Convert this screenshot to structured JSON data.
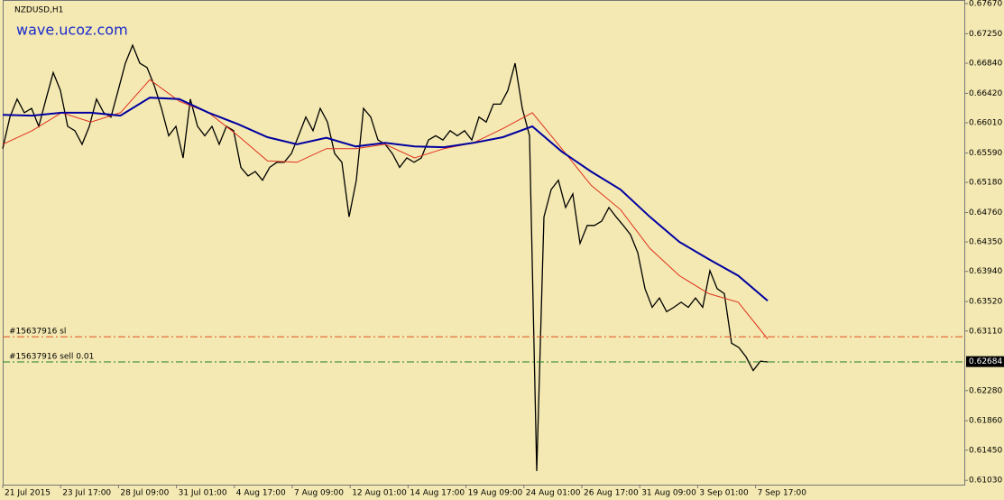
{
  "chart_data": {
    "type": "line",
    "title": "NZDUSD,H1",
    "watermark": "wave.ucoz.com",
    "x_labels": [
      "21 Jul 2015",
      "23 Jul 17:00",
      "28 Jul 09:00",
      "31 Jul 01:00",
      "4 Aug 17:00",
      "7 Aug 09:00",
      "12 Aug 01:00",
      "14 Aug 17:00",
      "19 Aug 09:00",
      "24 Aug 01:00",
      "26 Aug 17:00",
      "31 Aug 09:00",
      "3 Sep 01:00",
      "7 Sep 17:00"
    ],
    "ylim": [
      0.6097,
      0.6772
    ],
    "yticks": [
      {
        "value": 0.6767,
        "label": "0.67670"
      },
      {
        "value": 0.6725,
        "label": "0.67250"
      },
      {
        "value": 0.6684,
        "label": "0.66840"
      },
      {
        "value": 0.6642,
        "label": "0.66420"
      },
      {
        "value": 0.6601,
        "label": "0.66010"
      },
      {
        "value": 0.6559,
        "label": "0.65590"
      },
      {
        "value": 0.6518,
        "label": "0.65180"
      },
      {
        "value": 0.6476,
        "label": "0.64760"
      },
      {
        "value": 0.6435,
        "label": "0.64350"
      },
      {
        "value": 0.6394,
        "label": "0.63940"
      },
      {
        "value": 0.6352,
        "label": "0.63520"
      },
      {
        "value": 0.6311,
        "label": "0.63110"
      },
      {
        "value": 0.6228,
        "label": "0.62280"
      },
      {
        "value": 0.6186,
        "label": "0.61860"
      },
      {
        "value": 0.6145,
        "label": "0.61450"
      },
      {
        "value": 0.6103,
        "label": "0.61030"
      }
    ],
    "series": [
      {
        "color": "#000000",
        "values": [
          0.6565,
          0.6609,
          0.6634,
          0.6615,
          0.6621,
          0.6596,
          0.6634,
          0.6671,
          0.6646,
          0.6596,
          0.659,
          0.6571,
          0.6596,
          0.6634,
          0.6615,
          0.6609,
          0.6646,
          0.6684,
          0.6709,
          0.6684,
          0.6678,
          0.6653,
          0.6621,
          0.6583,
          0.6596,
          0.6552,
          0.6634,
          0.6596,
          0.6583,
          0.6596,
          0.6571,
          0.6596,
          0.659,
          0.6539,
          0.6527,
          0.6533,
          0.6521,
          0.6539,
          0.6546,
          0.6546,
          0.6558,
          0.6583,
          0.6609,
          0.659,
          0.6621,
          0.6602,
          0.6558,
          0.6546,
          0.647,
          0.6521,
          0.6621,
          0.6609,
          0.6577,
          0.6571,
          0.6558,
          0.6539,
          0.6552,
          0.6546,
          0.6552,
          0.6577,
          0.6583,
          0.6577,
          0.659,
          0.6583,
          0.659,
          0.6577,
          0.6609,
          0.6602,
          0.6627,
          0.6627,
          0.6646,
          0.6684,
          0.6621,
          0.6583,
          0.6116,
          0.647,
          0.6508,
          0.6521,
          0.6483,
          0.6502,
          0.6433,
          0.6458,
          0.6458,
          0.6464,
          0.6483,
          0.647,
          0.6458,
          0.6445,
          0.642,
          0.637,
          0.6344,
          0.6357,
          0.6338,
          0.6344,
          0.6351,
          0.6344,
          0.6357,
          0.6344,
          0.6395,
          0.637,
          0.6363,
          0.6294,
          0.6288,
          0.6275,
          0.6256,
          0.6269,
          0.6268
        ]
      },
      {
        "color": "#e0301e",
        "values": [
          0.6571,
          0.659,
          0.6615,
          0.6602,
          0.6615,
          0.6661,
          0.6631,
          0.6615,
          0.6583,
          0.6548,
          0.6546,
          0.6565,
          0.6565,
          0.6571,
          0.6552,
          0.6565,
          0.6573,
          0.6593,
          0.6615,
          0.6565,
          0.6514,
          0.648,
          0.6426,
          0.6388,
          0.6363,
          0.6351,
          0.63
        ]
      },
      {
        "color": "#0000a0",
        "values": [
          0.6612,
          0.6611,
          0.6615,
          0.6615,
          0.6611,
          0.6636,
          0.6634,
          0.6615,
          0.6599,
          0.6581,
          0.6571,
          0.658,
          0.6568,
          0.6573,
          0.6568,
          0.6567,
          0.6573,
          0.6581,
          0.6596,
          0.6561,
          0.6533,
          0.6508,
          0.647,
          0.6435,
          0.6411,
          0.6388,
          0.6353
        ]
      }
    ],
    "hlines": [
      {
        "label": "#15637916 sl",
        "value": 0.6303,
        "color": "#e05020"
      },
      {
        "label": "#15637916 sell 0.01",
        "value": 0.6268,
        "color": "#208020"
      }
    ],
    "current_price": 0.62684
  }
}
